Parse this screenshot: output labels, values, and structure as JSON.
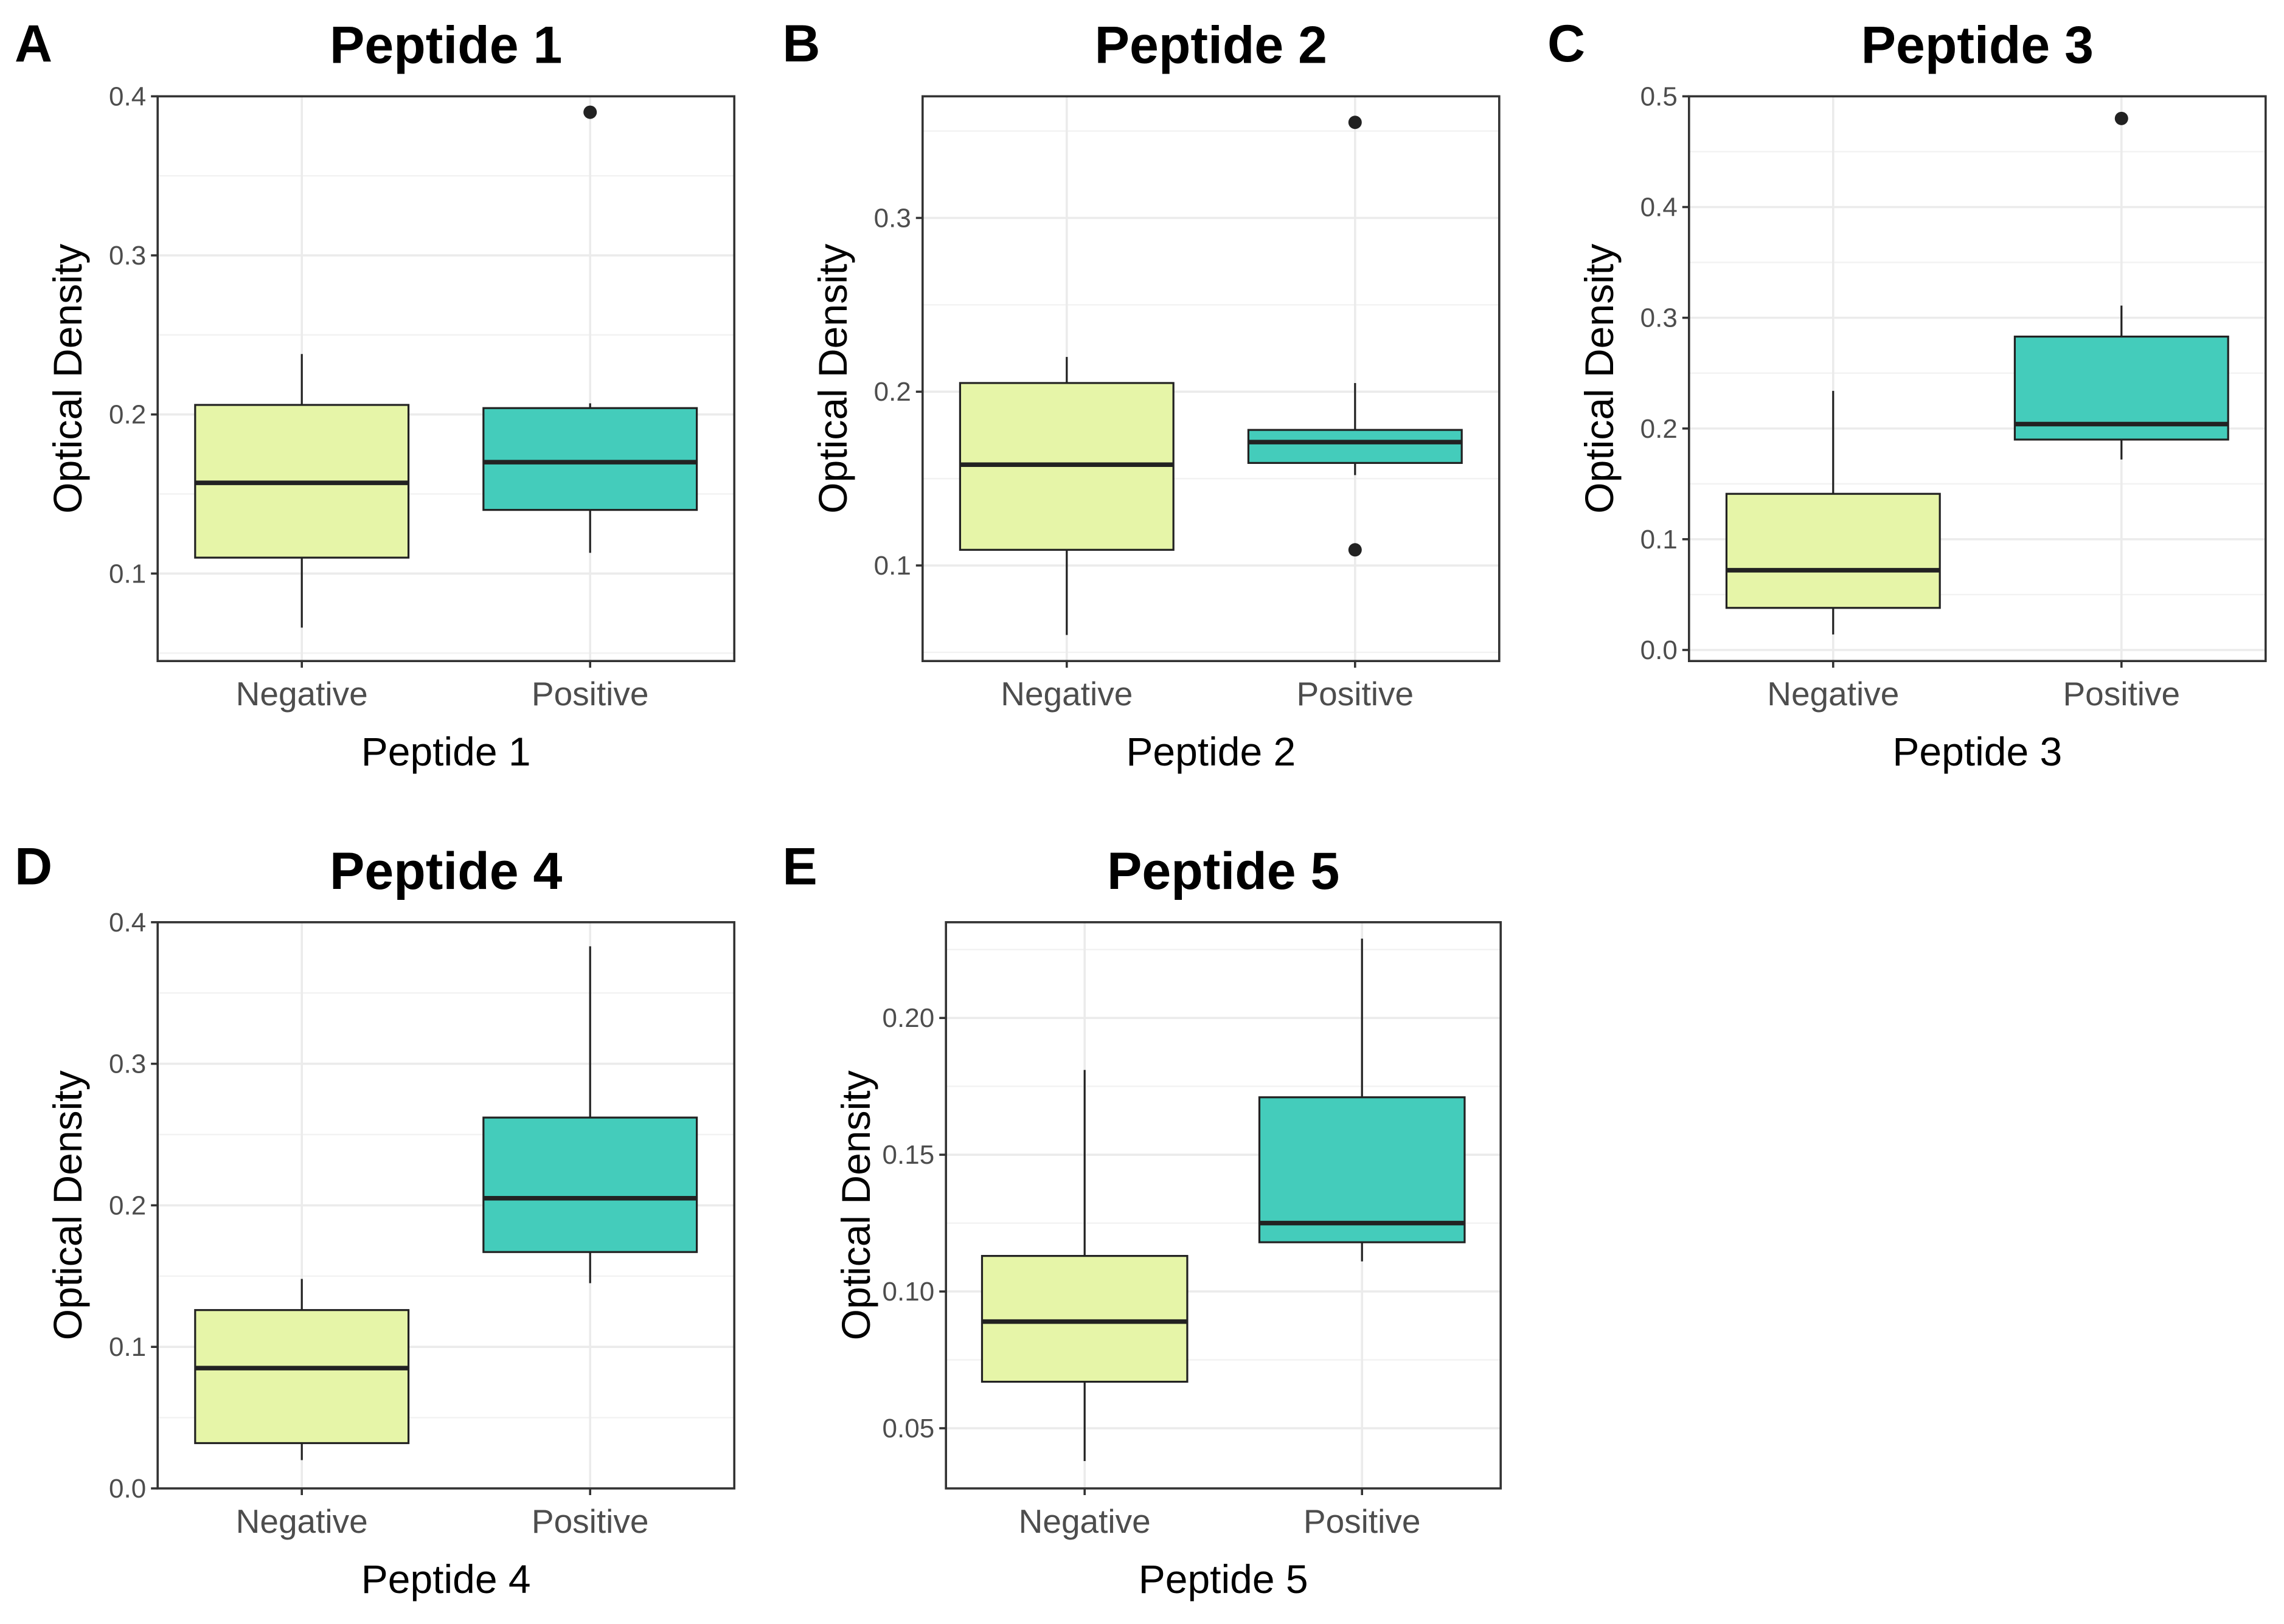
{
  "chart_data": [
    {
      "panel": "A",
      "type": "boxplot",
      "title": "Peptide 1",
      "xlabel": "Peptide 1",
      "ylabel": "Optical Density",
      "categories": [
        "Negative",
        "Positive"
      ],
      "ylim": [
        0.045,
        0.4
      ],
      "yticks": [
        0.1,
        0.2,
        0.3,
        0.4
      ],
      "ytick_labels": [
        "0.1",
        "0.2",
        "0.3",
        "0.4"
      ],
      "grid": true,
      "boxes": [
        {
          "category": "Negative",
          "whisker_low": 0.066,
          "q1": 0.11,
          "median": 0.157,
          "q3": 0.206,
          "whisker_high": 0.238,
          "outliers": [],
          "color": "#e6f5a8"
        },
        {
          "category": "Positive",
          "whisker_low": 0.113,
          "q1": 0.14,
          "median": 0.17,
          "q3": 0.204,
          "whisker_high": 0.207,
          "outliers": [
            0.39
          ],
          "color": "#44ccbb"
        }
      ]
    },
    {
      "panel": "B",
      "type": "boxplot",
      "title": "Peptide 2",
      "xlabel": "Peptide 2",
      "ylabel": "Optical Density",
      "categories": [
        "Negative",
        "Positive"
      ],
      "ylim": [
        0.045,
        0.37
      ],
      "yticks": [
        0.1,
        0.2,
        0.3
      ],
      "ytick_labels": [
        "0.1",
        "0.2",
        "0.3"
      ],
      "grid": true,
      "boxes": [
        {
          "category": "Negative",
          "whisker_low": 0.06,
          "q1": 0.109,
          "median": 0.158,
          "q3": 0.205,
          "whisker_high": 0.22,
          "outliers": [],
          "color": "#e6f5a8"
        },
        {
          "category": "Positive",
          "whisker_low": 0.152,
          "q1": 0.159,
          "median": 0.171,
          "q3": 0.178,
          "whisker_high": 0.205,
          "outliers": [
            0.355,
            0.109
          ],
          "color": "#44ccbb"
        }
      ]
    },
    {
      "panel": "C",
      "type": "boxplot",
      "title": "Peptide 3",
      "xlabel": "Peptide 3",
      "ylabel": "Optical Density",
      "categories": [
        "Negative",
        "Positive"
      ],
      "ylim": [
        -0.01,
        0.5
      ],
      "yticks": [
        0.0,
        0.1,
        0.2,
        0.3,
        0.4,
        0.5
      ],
      "ytick_labels": [
        "0.0",
        "0.1",
        "0.2",
        "0.3",
        "0.4",
        "0.5"
      ],
      "grid": true,
      "boxes": [
        {
          "category": "Negative",
          "whisker_low": 0.014,
          "q1": 0.038,
          "median": 0.072,
          "q3": 0.141,
          "whisker_high": 0.234,
          "outliers": [],
          "color": "#e6f5a8"
        },
        {
          "category": "Positive",
          "whisker_low": 0.172,
          "q1": 0.19,
          "median": 0.204,
          "q3": 0.283,
          "whisker_high": 0.311,
          "outliers": [
            0.48
          ],
          "color": "#44ccbb"
        }
      ]
    },
    {
      "panel": "D",
      "type": "boxplot",
      "title": "Peptide 4",
      "xlabel": "Peptide 4",
      "ylabel": "Optical Density",
      "categories": [
        "Negative",
        "Positive"
      ],
      "ylim": [
        0.0,
        0.4
      ],
      "yticks": [
        0.0,
        0.1,
        0.2,
        0.3,
        0.4
      ],
      "ytick_labels": [
        "0.0",
        "0.1",
        "0.2",
        "0.3",
        "0.4"
      ],
      "grid": true,
      "boxes": [
        {
          "category": "Negative",
          "whisker_low": 0.02,
          "q1": 0.032,
          "median": 0.085,
          "q3": 0.126,
          "whisker_high": 0.148,
          "outliers": [],
          "color": "#e6f5a8"
        },
        {
          "category": "Positive",
          "whisker_low": 0.145,
          "q1": 0.167,
          "median": 0.205,
          "q3": 0.262,
          "whisker_high": 0.383,
          "outliers": [],
          "color": "#44ccbb"
        }
      ]
    },
    {
      "panel": "E",
      "type": "boxplot",
      "title": "Peptide 5",
      "xlabel": "Peptide 5",
      "ylabel": "Optical Density",
      "categories": [
        "Negative",
        "Positive"
      ],
      "ylim": [
        0.028,
        0.235
      ],
      "yticks": [
        0.05,
        0.1,
        0.15,
        0.2
      ],
      "ytick_labels": [
        "0.05",
        "0.10",
        "0.15",
        "0.20"
      ],
      "grid": true,
      "boxes": [
        {
          "category": "Negative",
          "whisker_low": 0.038,
          "q1": 0.067,
          "median": 0.089,
          "q3": 0.113,
          "whisker_high": 0.181,
          "outliers": [],
          "color": "#e6f5a8"
        },
        {
          "category": "Positive",
          "whisker_low": 0.111,
          "q1": 0.118,
          "median": 0.125,
          "q3": 0.171,
          "whisker_high": 0.229,
          "outliers": [],
          "color": "#44ccbb"
        }
      ]
    }
  ]
}
